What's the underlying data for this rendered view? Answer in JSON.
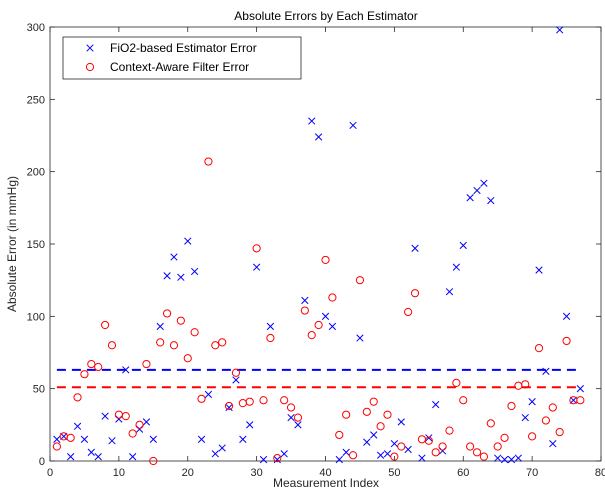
{
  "chart_data": {
    "type": "scatter",
    "title": "Absolute Errors by Each Estimator",
    "xlabel": "Measurement Index",
    "ylabel": "Absolute Error (in mmHg)",
    "xlim": [
      0,
      80
    ],
    "ylim": [
      0,
      300
    ],
    "xticks": [
      0,
      10,
      20,
      30,
      40,
      50,
      60,
      70,
      80
    ],
    "yticks": [
      0,
      50,
      100,
      150,
      200,
      250,
      300
    ],
    "grid": false,
    "legend_position": "top-left",
    "series": [
      {
        "name": "FiO2-based Estimator Error",
        "color": "#0000ff",
        "marker": "x",
        "mean": 63,
        "x": [
          1,
          2,
          3,
          4,
          5,
          6,
          7,
          8,
          9,
          10,
          11,
          12,
          13,
          14,
          15,
          16,
          17,
          18,
          19,
          20,
          21,
          22,
          23,
          24,
          25,
          26,
          27,
          28,
          29,
          30,
          31,
          32,
          33,
          34,
          35,
          36,
          37,
          38,
          39,
          40,
          41,
          42,
          43,
          44,
          45,
          46,
          47,
          48,
          49,
          50,
          51,
          52,
          53,
          54,
          55,
          56,
          57,
          58,
          59,
          60,
          61,
          62,
          63,
          64,
          65,
          66,
          67,
          68,
          69,
          70,
          71,
          72,
          73,
          74,
          75,
          76,
          77
        ],
        "y": [
          15,
          17,
          3,
          24,
          15,
          6,
          3,
          31,
          14,
          29,
          63,
          3,
          22,
          27,
          15,
          93,
          128,
          141,
          127,
          152,
          131,
          15,
          46,
          5,
          9,
          37,
          56,
          15,
          25,
          134,
          1,
          93,
          1,
          5,
          30,
          25,
          111,
          235,
          224,
          100,
          93,
          1,
          6,
          232,
          85,
          13,
          18,
          4,
          5,
          12,
          27,
          8,
          147,
          2,
          16,
          39,
          7,
          117,
          134,
          149,
          182,
          187,
          192,
          180,
          2,
          1,
          1,
          2,
          30,
          41,
          132,
          62,
          12,
          298,
          100,
          42,
          50
        ]
      },
      {
        "name": "Context-Aware Filter Error",
        "color": "#ff0000",
        "marker": "o",
        "mean": 51,
        "x": [
          1,
          2,
          3,
          4,
          5,
          6,
          7,
          8,
          9,
          10,
          11,
          12,
          13,
          14,
          15,
          16,
          17,
          18,
          19,
          20,
          21,
          22,
          23,
          24,
          25,
          26,
          27,
          28,
          29,
          30,
          31,
          32,
          33,
          34,
          35,
          36,
          37,
          38,
          39,
          40,
          41,
          42,
          43,
          44,
          45,
          46,
          47,
          48,
          49,
          50,
          51,
          52,
          53,
          54,
          55,
          56,
          57,
          58,
          59,
          60,
          61,
          62,
          63,
          64,
          65,
          66,
          67,
          68,
          69,
          70,
          71,
          72,
          73,
          74,
          75,
          76,
          77
        ],
        "y": [
          10,
          17,
          16,
          44,
          60,
          67,
          65,
          94,
          80,
          32,
          31,
          19,
          25,
          67,
          0,
          82,
          102,
          80,
          97,
          71,
          89,
          43,
          207,
          80,
          82,
          38,
          61,
          40,
          41,
          147,
          42,
          85,
          2,
          42,
          37,
          30,
          104,
          87,
          94,
          139,
          113,
          18,
          32,
          4,
          125,
          34,
          41,
          24,
          32,
          3,
          10,
          103,
          116,
          15,
          14,
          6,
          10,
          21,
          54,
          42,
          10,
          6,
          3,
          26,
          10,
          16,
          38,
          52,
          53,
          17,
          78,
          28,
          37,
          20,
          83,
          42,
          42
        ]
      }
    ]
  }
}
